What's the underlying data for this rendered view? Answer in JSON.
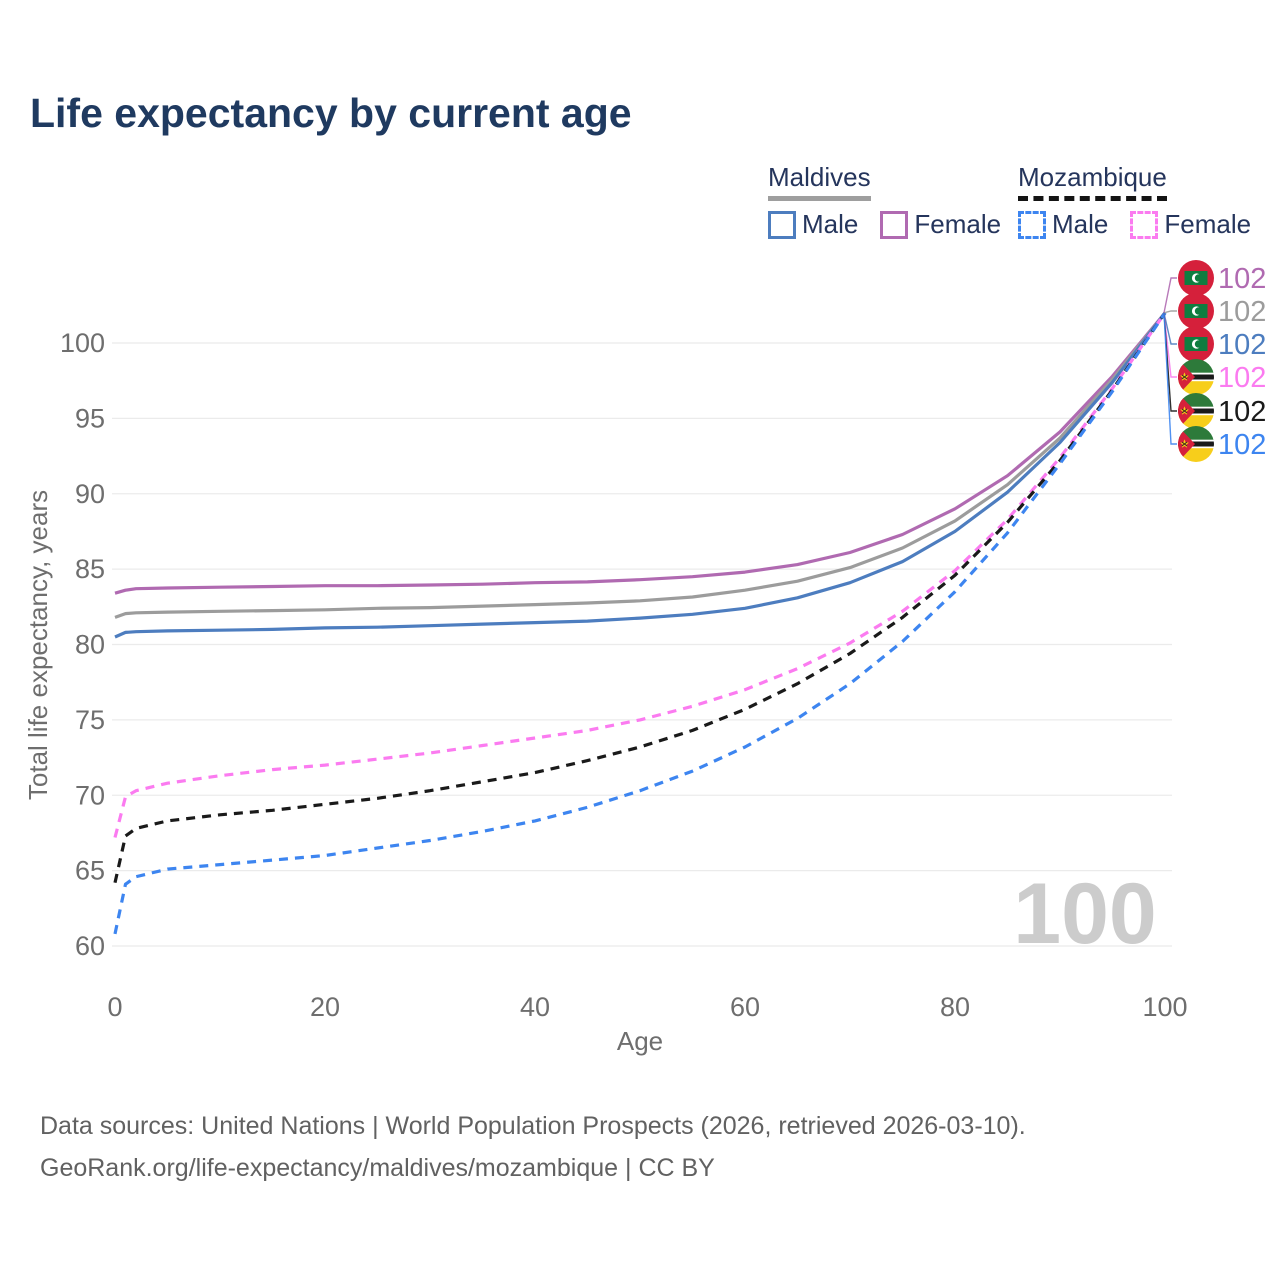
{
  "title": "Life expectancy by current age",
  "legend": {
    "groups": [
      {
        "country": "Maldives",
        "style": "solid",
        "underline_color": "#9e9e9e",
        "items": [
          {
            "label": "Male",
            "color": "#4d7dbf",
            "dash": false
          },
          {
            "label": "Female",
            "color": "#b06ab1",
            "dash": false
          }
        ]
      },
      {
        "country": "Mozambique",
        "style": "dashed",
        "underline_color": "#141414",
        "items": [
          {
            "label": "Male",
            "color": "#3d85f0",
            "dash": true
          },
          {
            "label": "Female",
            "color": "#fb7bf0",
            "dash": true
          }
        ]
      }
    ]
  },
  "watermark": "100",
  "footer": {
    "line1": "Data sources: United Nations | World Population Prospects (2026, retrieved 2026-03-10).",
    "line2": "GeoRank.org/life-expectancy/maldives/mozambique | CC BY"
  },
  "chart_data": {
    "type": "line",
    "title": "Life expectancy by current age",
    "xlabel": "Age",
    "ylabel": "Total life expectancy, years",
    "xlim": [
      0,
      100
    ],
    "x_ticks": [
      0,
      20,
      40,
      60,
      80,
      100
    ],
    "y_ticks": [
      60,
      65,
      70,
      75,
      80,
      85,
      90,
      95,
      100
    ],
    "grid": "horizontal",
    "legend_position": "top-right",
    "x": [
      0,
      1,
      2,
      5,
      10,
      15,
      20,
      25,
      30,
      35,
      40,
      45,
      50,
      55,
      60,
      65,
      70,
      75,
      80,
      85,
      90,
      95,
      100
    ],
    "series": [
      {
        "name": "Maldives Female",
        "country": "Maldives",
        "sex": "Female",
        "color": "#b06ab1",
        "dashed": false,
        "flag": "maldives",
        "end_label": "102",
        "values": [
          83.4,
          83.6,
          83.7,
          83.75,
          83.8,
          83.85,
          83.9,
          83.9,
          83.95,
          84.0,
          84.1,
          84.15,
          84.3,
          84.5,
          84.8,
          85.3,
          86.1,
          87.3,
          89.0,
          91.2,
          94.1,
          97.8,
          102
        ]
      },
      {
        "name": "Maldives Both sexes",
        "country": "Maldives",
        "sex": "Both",
        "color": "#9c9c9c",
        "dashed": false,
        "flag": "maldives",
        "end_label": "102",
        "values": [
          81.8,
          82.05,
          82.1,
          82.15,
          82.2,
          82.25,
          82.3,
          82.4,
          82.45,
          82.55,
          82.65,
          82.75,
          82.9,
          83.15,
          83.6,
          84.2,
          85.1,
          86.4,
          88.2,
          90.6,
          93.7,
          97.6,
          102
        ]
      },
      {
        "name": "Maldives Male",
        "country": "Maldives",
        "sex": "Male",
        "color": "#4d7dbf",
        "dashed": false,
        "flag": "maldives",
        "end_label": "102",
        "values": [
          80.5,
          80.8,
          80.85,
          80.9,
          80.95,
          81.0,
          81.1,
          81.15,
          81.25,
          81.35,
          81.45,
          81.55,
          81.75,
          82.0,
          82.4,
          83.1,
          84.1,
          85.5,
          87.5,
          90.1,
          93.4,
          97.4,
          102
        ]
      },
      {
        "name": "Mozambique Female",
        "country": "Mozambique",
        "sex": "Female",
        "color": "#fb7bf0",
        "dashed": true,
        "flag": "mozambique",
        "end_label": "102",
        "values": [
          67.2,
          69.9,
          70.3,
          70.8,
          71.3,
          71.7,
          72.0,
          72.4,
          72.8,
          73.3,
          73.8,
          74.3,
          75.0,
          75.9,
          77.0,
          78.4,
          80.1,
          82.2,
          84.9,
          88.3,
          92.4,
          97.0,
          102
        ]
      },
      {
        "name": "Mozambique Both sexes",
        "country": "Mozambique",
        "sex": "Both",
        "color": "#1a1a1a",
        "dashed": true,
        "flag": "mozambique",
        "end_label": "102",
        "values": [
          64.2,
          67.3,
          67.8,
          68.3,
          68.7,
          69.0,
          69.4,
          69.8,
          70.3,
          70.9,
          71.5,
          72.3,
          73.2,
          74.3,
          75.7,
          77.4,
          79.4,
          81.8,
          84.6,
          88.1,
          92.2,
          96.9,
          102
        ]
      },
      {
        "name": "Mozambique Male",
        "country": "Mozambique",
        "sex": "Male",
        "color": "#3d85f0",
        "dashed": true,
        "flag": "mozambique",
        "end_label": "102",
        "values": [
          60.8,
          64.1,
          64.6,
          65.1,
          65.4,
          65.7,
          66.0,
          66.5,
          67.0,
          67.6,
          68.3,
          69.2,
          70.3,
          71.6,
          73.2,
          75.1,
          77.4,
          80.2,
          83.5,
          87.4,
          92.0,
          96.8,
          102
        ]
      }
    ]
  }
}
